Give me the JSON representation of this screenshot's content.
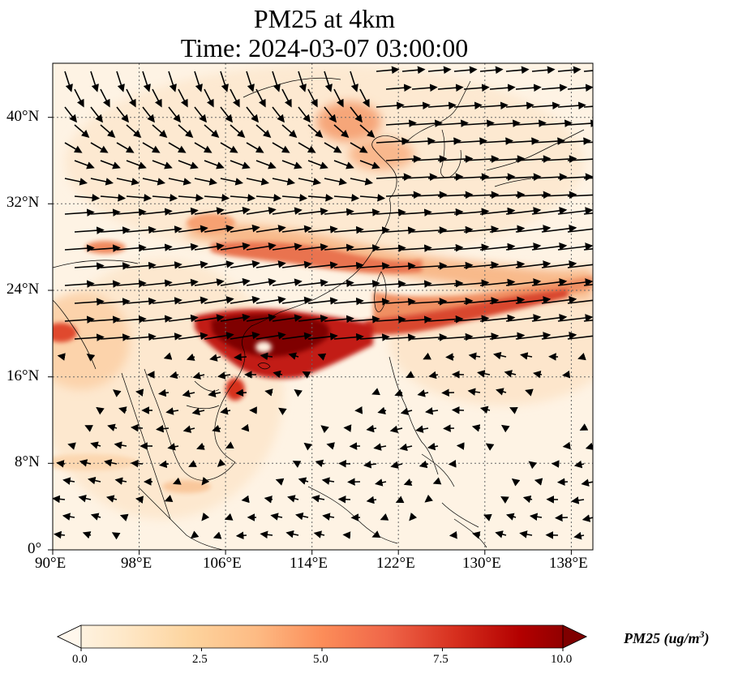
{
  "title": {
    "line1": "PM25 at 4km",
    "line2": "Time: 2024-03-07 03:00:00"
  },
  "map": {
    "lon_range": [
      90,
      140
    ],
    "lat_range": [
      0,
      45
    ],
    "x_ticks": [
      "90°E",
      "98°E",
      "106°E",
      "114°E",
      "122°E",
      "130°E",
      "138°E"
    ],
    "y_ticks": [
      "0°",
      "8°N",
      "16°N",
      "24°N",
      "32°N",
      "40°N"
    ],
    "gridlines": true,
    "field": "PM25",
    "overlay": "wind vectors"
  },
  "colorbar": {
    "label_main": "PM25 (ug/m",
    "label_sup": "3",
    "label_end": ")",
    "ticks": [
      "0.0",
      "2.5",
      "5.0",
      "7.5",
      "10.0"
    ],
    "range": [
      0,
      10
    ],
    "colormap": "OrRd",
    "extend": "both",
    "colors": [
      "#fff7ec",
      "#fee8c8",
      "#fdd49e",
      "#fdbb84",
      "#fc8d59",
      "#ef6548",
      "#d7301f",
      "#b30000",
      "#7f0000"
    ]
  }
}
